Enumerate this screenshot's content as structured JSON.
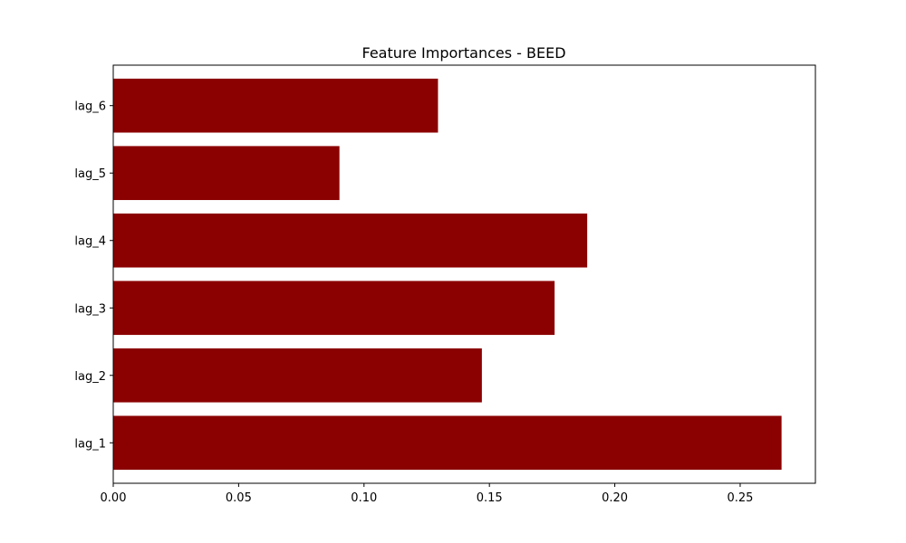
{
  "chart_data": {
    "type": "bar",
    "orientation": "horizontal",
    "title": "Feature Importances - BEED",
    "xlabel": "",
    "ylabel": "",
    "categories": [
      "lag_1",
      "lag_2",
      "lag_3",
      "lag_4",
      "lag_5",
      "lag_6"
    ],
    "values": [
      0.2665,
      0.147,
      0.176,
      0.189,
      0.0902,
      0.1295
    ],
    "xlim": [
      0,
      0.28
    ],
    "xticks": [
      "0.00",
      "0.05",
      "0.10",
      "0.15",
      "0.20",
      "0.25"
    ],
    "bar_color": "#8b0000",
    "grid": false
  }
}
